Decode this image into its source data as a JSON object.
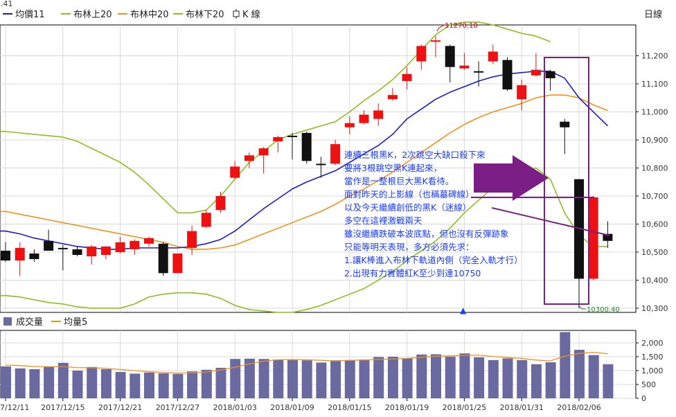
{
  "chart_data": {
    "type": "candlestick",
    "corner_label": ".41",
    "period_label": "日線",
    "legend": [
      {
        "key": "ma",
        "label": "均價11",
        "color": "#1a1ad0"
      },
      {
        "key": "bb_upper",
        "label": "布林上20",
        "color": "#8cbf1f"
      },
      {
        "key": "bb_mid",
        "label": "布林中20",
        "color": "#f0921a"
      },
      {
        "key": "bb_lower",
        "label": "布林下20",
        "color": "#8cbf1f"
      },
      {
        "key": "k_suffix",
        "label": "K 線",
        "color": "#222222"
      }
    ],
    "y_ticks": [
      "11,200",
      "11,100",
      "11,000",
      "10,900",
      "10,800",
      "10,700",
      "10,600",
      "10,500",
      "10,400",
      "10,300"
    ],
    "ylim": [
      10285,
      11310
    ],
    "x_labels": [
      "7/12/11",
      "2017/12/15",
      "2017/12/21",
      "2017/12/27",
      "2018/01/03",
      "2018/01/09",
      "2018/01/15",
      "2018/01/19",
      "2018/01/25",
      "2018/01/31",
      "2018/02/06"
    ],
    "x_label_index": [
      0,
      4,
      8,
      12,
      16,
      20,
      24,
      28,
      32,
      36,
      40
    ],
    "candles": [
      {
        "o": 10505,
        "h": 10535,
        "l": 10465,
        "c": 10470
      },
      {
        "o": 10470,
        "h": 10535,
        "l": 10415,
        "c": 10515
      },
      {
        "o": 10495,
        "h": 10510,
        "l": 10465,
        "c": 10475
      },
      {
        "o": 10540,
        "h": 10580,
        "l": 10505,
        "c": 10505
      },
      {
        "o": 10515,
        "h": 10525,
        "l": 10435,
        "c": 10510
      },
      {
        "o": 10510,
        "h": 10520,
        "l": 10485,
        "c": 10490
      },
      {
        "o": 10485,
        "h": 10525,
        "l": 10455,
        "c": 10520
      },
      {
        "o": 10490,
        "h": 10520,
        "l": 10475,
        "c": 10520
      },
      {
        "o": 10500,
        "h": 10555,
        "l": 10495,
        "c": 10535
      },
      {
        "o": 10510,
        "h": 10545,
        "l": 10490,
        "c": 10540
      },
      {
        "o": 10530,
        "h": 10555,
        "l": 10520,
        "c": 10550
      },
      {
        "o": 10530,
        "h": 10535,
        "l": 10415,
        "c": 10425
      },
      {
        "o": 10425,
        "h": 10495,
        "l": 10425,
        "c": 10495
      },
      {
        "o": 10515,
        "h": 10595,
        "l": 10490,
        "c": 10575
      },
      {
        "o": 10590,
        "h": 10650,
        "l": 10585,
        "c": 10640
      },
      {
        "o": 10650,
        "h": 10715,
        "l": 10640,
        "c": 10700
      },
      {
        "o": 10765,
        "h": 10825,
        "l": 10760,
        "c": 10805
      },
      {
        "o": 10825,
        "h": 10855,
        "l": 10800,
        "c": 10845
      },
      {
        "o": 10845,
        "h": 10875,
        "l": 10780,
        "c": 10870
      },
      {
        "o": 10895,
        "h": 10915,
        "l": 10855,
        "c": 10910
      },
      {
        "o": 10915,
        "h": 10925,
        "l": 10830,
        "c": 10910
      },
      {
        "o": 10925,
        "h": 10930,
        "l": 10815,
        "c": 10825
      },
      {
        "o": 10815,
        "h": 10840,
        "l": 10765,
        "c": 10810
      },
      {
        "o": 10815,
        "h": 10900,
        "l": 10810,
        "c": 10885
      },
      {
        "o": 10945,
        "h": 10985,
        "l": 10920,
        "c": 10960
      },
      {
        "o": 10960,
        "h": 11005,
        "l": 10955,
        "c": 10990
      },
      {
        "o": 10975,
        "h": 11030,
        "l": 10950,
        "c": 11005
      },
      {
        "o": 11045,
        "h": 11085,
        "l": 11040,
        "c": 11060
      },
      {
        "o": 11110,
        "h": 11160,
        "l": 11080,
        "c": 11135
      },
      {
        "o": 11180,
        "h": 11240,
        "l": 11150,
        "c": 11235
      },
      {
        "o": 11250,
        "h": 11270,
        "l": 11195,
        "c": 11255
      },
      {
        "o": 11235,
        "h": 11240,
        "l": 11105,
        "c": 11160
      },
      {
        "o": 11155,
        "h": 11210,
        "l": 11150,
        "c": 11165
      },
      {
        "o": 11145,
        "h": 11180,
        "l": 11090,
        "c": 11140
      },
      {
        "o": 11180,
        "h": 11240,
        "l": 11170,
        "c": 11215
      },
      {
        "o": 11185,
        "h": 11195,
        "l": 11075,
        "c": 11080
      },
      {
        "o": 11045,
        "h": 11115,
        "l": 11005,
        "c": 11095
      },
      {
        "o": 11130,
        "h": 11210,
        "l": 11125,
        "c": 11150
      },
      {
        "o": 11145,
        "h": 11150,
        "l": 11075,
        "c": 11120
      },
      {
        "o": 10965,
        "h": 10975,
        "l": 10850,
        "c": 10945
      },
      {
        "o": 10760,
        "h": 10760,
        "l": 10300,
        "c": 10405
      },
      {
        "o": 10405,
        "h": 10700,
        "l": 10400,
        "c": 10695
      },
      {
        "o": 10565,
        "h": 10610,
        "l": 10515,
        "c": 10540
      }
    ],
    "ma11": [
      10575,
      10565,
      10550,
      10540,
      10530,
      10520,
      10515,
      10510,
      10510,
      10515,
      10515,
      10515,
      10515,
      10520,
      10530,
      10545,
      10575,
      10615,
      10655,
      10690,
      10725,
      10750,
      10770,
      10790,
      10820,
      10850,
      10880,
      10920,
      10975,
      11010,
      11045,
      11070,
      11090,
      11110,
      11125,
      11135,
      11140,
      11145,
      11145,
      11120,
      11050,
      11000,
      10950
    ],
    "bb_upper": [
      10930,
      10925,
      10920,
      10915,
      10910,
      10895,
      10870,
      10845,
      10820,
      10785,
      10740,
      10690,
      10640,
      10640,
      10650,
      10700,
      10760,
      10820,
      10860,
      10900,
      10920,
      10935,
      10950,
      10965,
      11000,
      11040,
      11075,
      11115,
      11165,
      11220,
      11275,
      11310,
      11320,
      11320,
      11310,
      11295,
      11280,
      11270,
      11250,
      null,
      null,
      null,
      null
    ],
    "bb_mid": [
      10645,
      10635,
      10625,
      10615,
      10605,
      10595,
      10585,
      10575,
      10565,
      10555,
      10545,
      10535,
      10520,
      10510,
      10510,
      10515,
      10525,
      10545,
      10565,
      10585,
      10605,
      10625,
      10645,
      10670,
      10700,
      10725,
      10755,
      10785,
      10820,
      10855,
      10890,
      10925,
      10955,
      10980,
      11000,
      11015,
      11030,
      11050,
      11060,
      11060,
      11050,
      11025,
      11005
    ],
    "bb_lower": [
      10345,
      10340,
      10330,
      10320,
      10315,
      10305,
      10300,
      10300,
      10300,
      10315,
      10340,
      10350,
      10355,
      10355,
      10350,
      10335,
      10310,
      10295,
      10290,
      10285,
      10285,
      10295,
      10310,
      10330,
      10350,
      10370,
      10400,
      10430,
      10470,
      10505,
      10540,
      10585,
      10640,
      10685,
      10730,
      10760,
      10795,
      10800,
      10760,
      10640,
      10560,
      10520,
      10520
    ],
    "volume": {
      "label": "成交量",
      "ma_label": "均量5",
      "ma_color": "#f0921a",
      "bar_color": "#6a6aa0",
      "y_ticks": [
        "2,000",
        "1,500",
        "1,000",
        "500",
        "0"
      ],
      "ylim": [
        0,
        2450
      ],
      "values": [
        1150,
        1080,
        1050,
        1130,
        1280,
        1000,
        1130,
        1050,
        950,
        890,
        930,
        900,
        880,
        970,
        1030,
        1100,
        1420,
        1430,
        1420,
        1400,
        1380,
        1370,
        1290,
        1370,
        1370,
        1400,
        1490,
        1500,
        1450,
        1580,
        1590,
        1500,
        1620,
        1480,
        1380,
        1440,
        1380,
        1230,
        1300,
        2390,
        1750,
        1560,
        1230
      ],
      "ma5": [
        1200,
        1180,
        1150,
        1140,
        1140,
        1110,
        1100,
        1080,
        1040,
        1000,
        960,
        930,
        910,
        920,
        950,
        1020,
        1120,
        1240,
        1340,
        1390,
        1400,
        1390,
        1370,
        1350,
        1370,
        1380,
        1400,
        1420,
        1440,
        1480,
        1520,
        1530,
        1550,
        1560,
        1510,
        1470,
        1440,
        1380,
        1350,
        1520,
        1620,
        1660,
        1610
      ]
    },
    "annotations": {
      "high_label": "11270.18",
      "low_label": "10300.40",
      "note_lines": [
        "連續三根黑K，2次跳空大缺口殺下來",
        "要將3根跳空黑K連起來，",
        "當作是一整根巨大黑K看待。",
        "面對昨天的上影線（也稱墓碑線）",
        "以及今天繼續創低的黑K（迷線）",
        "多空在這裡激戰兩天",
        "雖沒繼續跌破本波底點，但也沒有反彈跡象",
        "只能等明天表現，多方必須先求：",
        "1.讓K棒進入布林下軌道內側（完全入軌才行）",
        "2.出現有力實體紅K至少到達10750"
      ]
    }
  }
}
